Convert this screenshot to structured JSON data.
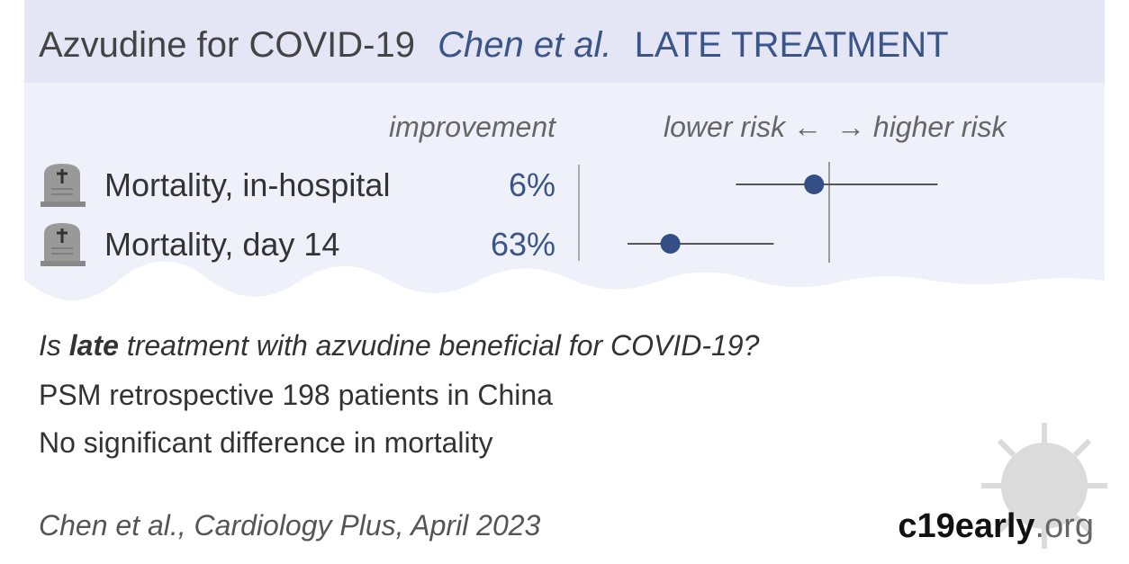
{
  "header": {
    "drug": "Azvudine for COVID-19",
    "authors": "Chen et al.",
    "stage": "LATE TREATMENT"
  },
  "columns": {
    "improvement": "improvement",
    "lower": "lower risk ←",
    "higher": "→ higher risk"
  },
  "plot": {
    "xlim": [
      0.2,
      1.8
    ],
    "reference": 1
  },
  "rows": [
    {
      "label": "Mortality, in-hospital",
      "improvement": "6%",
      "rr": 0.94,
      "ci_low": 0.63,
      "ci_high": 1.43
    },
    {
      "label": "Mortality, day 14",
      "improvement": "63%",
      "rr": 0.37,
      "ci_low": 0.2,
      "ci_high": 0.78
    }
  ],
  "question": [
    "Is ",
    "late",
    " treatment with azvudine beneficial for COVID-19?"
  ],
  "design": "PSM retrospective 198 patients in China",
  "conclusion": "No significant difference in mortality",
  "citation": "Chen et al., Cardiology Plus, April 2023",
  "brand": [
    "c19early",
    ".org"
  ]
}
